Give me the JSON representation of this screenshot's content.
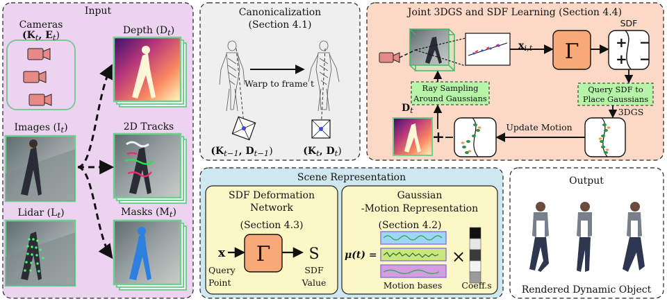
{
  "input": {
    "title": "Input",
    "cameras_label": "Cameras",
    "cameras_sym": "(K",
    "cameras_sub_t": "t",
    "cameras_sym2": ", E",
    "cameras_sub_t2": "t",
    "cameras_close": ")",
    "images_label": "Images (I",
    "images_sub": "t",
    "images_close": ")",
    "lidar_label": "Lidar (L",
    "lidar_sub": "t",
    "lidar_close": ")",
    "depth_label": "Depth (D",
    "depth_sub": "t",
    "depth_close": ")",
    "tracks_label": "2D Tracks",
    "masks_label": "Masks (M",
    "masks_sub": "t",
    "masks_close": ")"
  },
  "canonical": {
    "title": "Canonicalization",
    "section": "(Section 4.1)",
    "warp_label": "Warp to frame t",
    "left_cam": "(K",
    "left_sub": "t−1",
    "left_mid": ", D",
    "left_sub2": "t−1",
    "left_close": ")",
    "right_cam": "(K",
    "right_sub": "t",
    "right_mid": ", D",
    "right_sub2": "t",
    "right_close": ")"
  },
  "joint": {
    "title": "Joint 3DGS and SDF Learning (Section 4.4)",
    "sdf_label": "SDF",
    "x_label": "x",
    "x_sub": "i,t",
    "gamma": "Γ",
    "ray_sampling_1": "Ray Sampling",
    "ray_sampling_2": "Around Gaussians",
    "query_1": "Query SDF to",
    "query_2": "Place Gaussians",
    "dgs_label": "3DGS",
    "depth_sym": "D",
    "depth_sub": "t",
    "plus": "+",
    "update_motion": "Update Motion"
  },
  "scene": {
    "title": "Scene Representation",
    "sdf_def_1": "SDF Deformation",
    "sdf_def_2": "Network",
    "sdf_def_3": "(Section 4.3)",
    "x_in": "x",
    "gamma": "Γ",
    "s_out": "S",
    "query_point_1": "Query",
    "query_point_2": "Point",
    "sdf_value_1": "SDF",
    "sdf_value_2": "Value",
    "gauss_1": "Gaussian",
    "gauss_2": "-Motion Representation",
    "gauss_3": "(Section 4.2)",
    "mu_label": "μ(t) =",
    "times": "×",
    "motion_bases": "Motion bases",
    "coeffs": "Coeff.s"
  },
  "output": {
    "title": "Output",
    "caption": "Rendered Dynamic Object"
  },
  "colors": {
    "input_bg": "#ecd3f0",
    "canon_bg": "#efefef",
    "joint_bg": "#fbd9c6",
    "scene_bg": "#cfe8f0",
    "inner_yellow": "#fcf7c6",
    "gamma_fill": "#f7a978",
    "green_box": "#b6f5a8",
    "frame_green": "#6fcf8f"
  }
}
